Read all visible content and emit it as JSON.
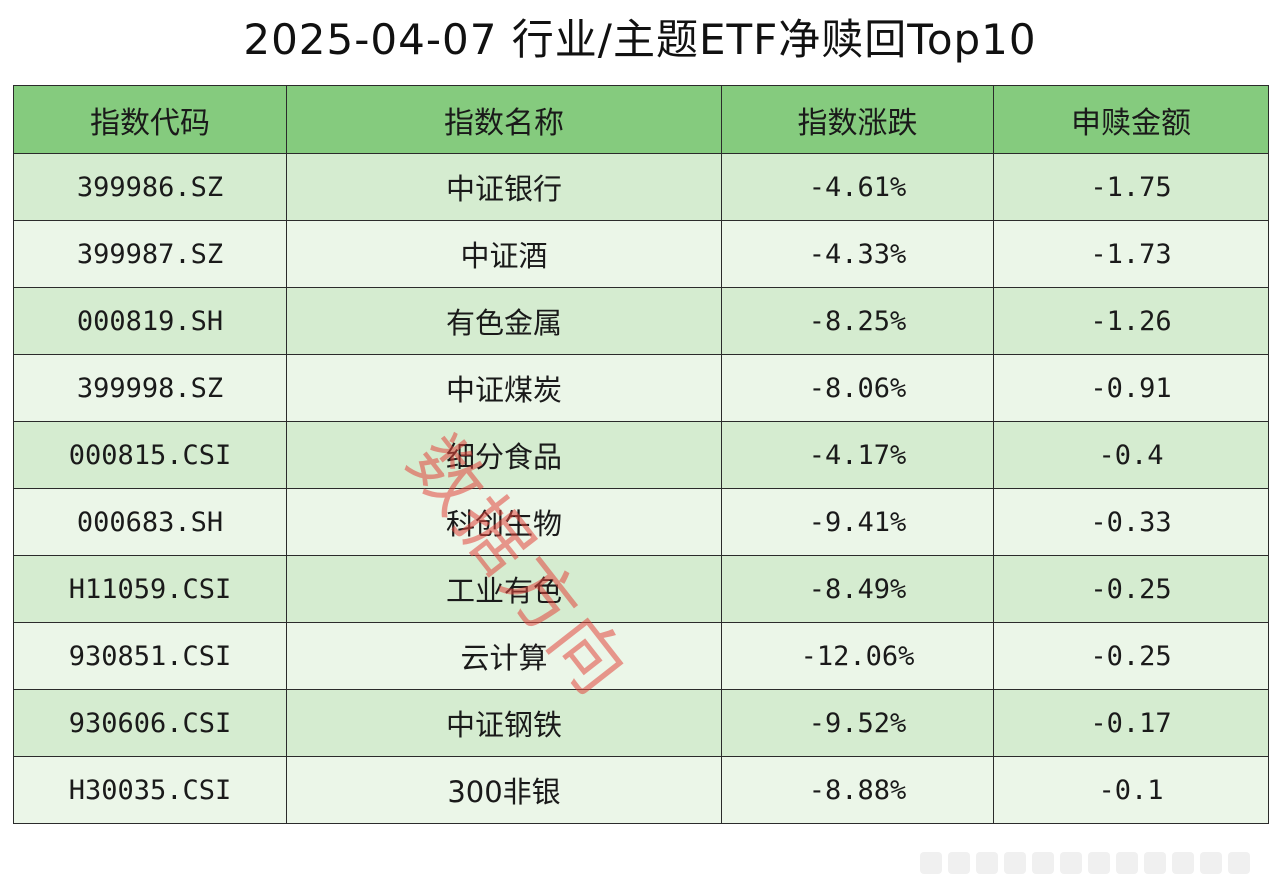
{
  "title": "2025-04-07 行业/主题ETF净赎回Top10",
  "table": {
    "headers": [
      "指数代码",
      "指数名称",
      "指数涨跌",
      "申赎金额"
    ],
    "rows": [
      [
        "399986.SZ",
        "中证银行",
        "-4.61%",
        "-1.75"
      ],
      [
        "399987.SZ",
        "中证酒",
        "-4.33%",
        "-1.73"
      ],
      [
        "000819.SH",
        "有色金属",
        "-8.25%",
        "-1.26"
      ],
      [
        "399998.SZ",
        "中证煤炭",
        "-8.06%",
        "-0.91"
      ],
      [
        "000815.CSI",
        "细分食品",
        "-4.17%",
        "-0.4"
      ],
      [
        "000683.SH",
        "科创生物",
        "-9.41%",
        "-0.33"
      ],
      [
        "H11059.CSI",
        "工业有色",
        "-8.49%",
        "-0.25"
      ],
      [
        "930851.CSI",
        "云计算",
        "-12.06%",
        "-0.25"
      ],
      [
        "930606.CSI",
        "中证钢铁",
        "-9.52%",
        "-0.17"
      ],
      [
        "H30035.CSI",
        "300非银",
        "-8.88%",
        "-0.1"
      ]
    ]
  },
  "watermark": "数据方向",
  "colors": {
    "header_bg": "#85cb7e",
    "row_odd_bg": "#d5ecd0",
    "row_even_bg": "#ebf6e8",
    "watermark": "#e1463c"
  }
}
